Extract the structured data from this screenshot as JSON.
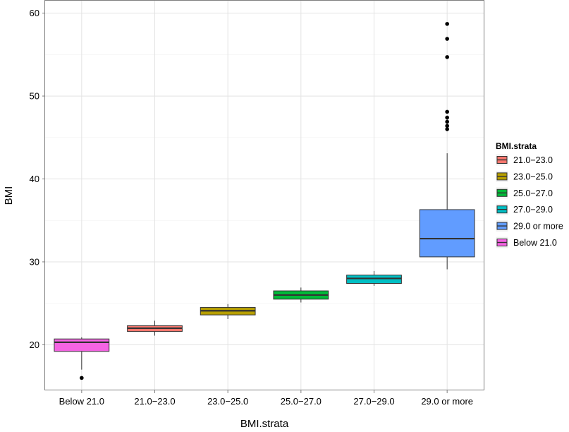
{
  "chart_data": {
    "type": "box",
    "xlabel": "BMI.strata",
    "ylabel": "BMI",
    "ylim": [
      14.5,
      61.5
    ],
    "yticks": [
      20,
      30,
      40,
      50,
      60
    ],
    "categories": [
      "Below 21.0",
      "21.0−23.0",
      "23.0−25.0",
      "25.0−27.0",
      "27.0−29.0",
      "29.0 or more"
    ],
    "boxes": [
      {
        "category": "Below 21.0",
        "color": "#F564E3",
        "min": 17.0,
        "q1": 19.2,
        "median": 20.3,
        "q3": 20.7,
        "max": 20.9,
        "outliers": [
          16.0
        ]
      },
      {
        "category": "21.0−23.0",
        "color": "#F8766D",
        "min": 21.1,
        "q1": 21.6,
        "median": 22.0,
        "q3": 22.3,
        "max": 22.9,
        "outliers": []
      },
      {
        "category": "23.0−25.0",
        "color": "#B79F00",
        "min": 23.1,
        "q1": 23.6,
        "median": 24.1,
        "q3": 24.5,
        "max": 24.9,
        "outliers": []
      },
      {
        "category": "25.0−27.0",
        "color": "#00BA38",
        "min": 25.1,
        "q1": 25.5,
        "median": 26.0,
        "q3": 26.5,
        "max": 26.9,
        "outliers": []
      },
      {
        "category": "27.0−29.0",
        "color": "#00BFC4",
        "min": 27.1,
        "q1": 27.4,
        "median": 28.0,
        "q3": 28.4,
        "max": 28.9,
        "outliers": []
      },
      {
        "category": "29.0 or more",
        "color": "#619CFF",
        "min": 29.1,
        "q1": 30.6,
        "median": 32.8,
        "q3": 36.3,
        "max": 43.1,
        "outliers": [
          46.0,
          46.4,
          46.9,
          47.4,
          48.1,
          54.7,
          56.9,
          58.7
        ]
      }
    ],
    "legend": {
      "title": "BMI.strata",
      "placement": "right",
      "items": [
        {
          "label": "21.0−23.0",
          "color": "#F8766D"
        },
        {
          "label": "23.0−25.0",
          "color": "#B79F00"
        },
        {
          "label": "25.0−27.0",
          "color": "#00BA38"
        },
        {
          "label": "27.0−29.0",
          "color": "#00BFC4"
        },
        {
          "label": "29.0 or more",
          "color": "#619CFF"
        },
        {
          "label": "Below 21.0",
          "color": "#F564E3"
        }
      ]
    },
    "grid": true
  }
}
